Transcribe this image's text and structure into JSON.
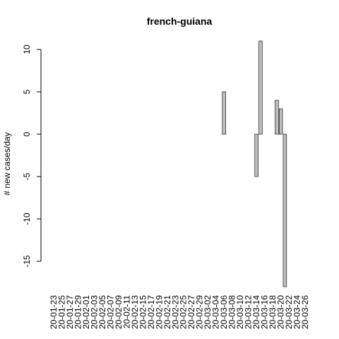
{
  "chart_data": {
    "type": "bar",
    "title": "french-guiana",
    "y_label": "# new cases/day",
    "categories": [
      "20-01-23",
      null,
      "20-01-25",
      null,
      "20-01-27",
      null,
      "20-01-29",
      null,
      "20-02-01",
      null,
      "20-02-03",
      null,
      "20-02-05",
      null,
      "20-02-07",
      null,
      "20-02-09",
      null,
      "20-02-11",
      null,
      "20-02-13",
      null,
      "20-02-15",
      null,
      "20-02-17",
      null,
      "20-02-19",
      null,
      "20-02-21",
      null,
      "20-02-23",
      null,
      "20-02-25",
      null,
      "20-02-27",
      null,
      "20-02-29",
      null,
      "20-03-02",
      null,
      "20-03-04",
      null,
      "20-03-06",
      null,
      "20-03-08",
      null,
      "20-03-10",
      null,
      "20-03-12",
      null,
      "20-03-14",
      null,
      "20-03-16",
      null,
      "20-03-18",
      null,
      "20-03-20",
      null,
      "20-03-22",
      null,
      "20-03-24",
      null,
      "20-03-26"
    ],
    "values": [
      0,
      0,
      0,
      0,
      0,
      0,
      0,
      0,
      0,
      0,
      0,
      0,
      0,
      0,
      0,
      0,
      0,
      0,
      0,
      0,
      0,
      0,
      0,
      0,
      0,
      0,
      0,
      0,
      0,
      0,
      0,
      0,
      0,
      0,
      0,
      0,
      0,
      0,
      0,
      0,
      0,
      0,
      5,
      0,
      0,
      0,
      0,
      0,
      0,
      0,
      -5,
      11,
      0,
      0,
      0,
      4,
      3,
      -18,
      0,
      0,
      0,
      0,
      0
    ],
    "color": "#bebebe",
    "ylim": [
      -18,
      11
    ],
    "yticks": [
      -15,
      -10,
      -5,
      0,
      5,
      10
    ]
  }
}
